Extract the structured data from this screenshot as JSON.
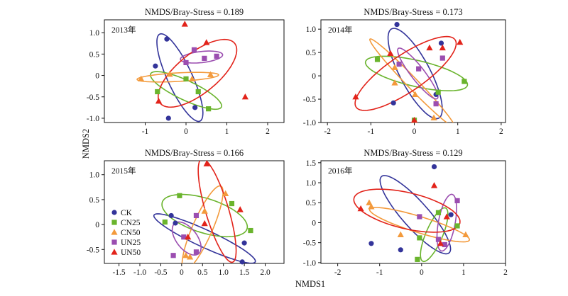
{
  "figure": {
    "xlabel": "NMDS1",
    "ylabel": "NMDS2"
  },
  "series_styles": [
    {
      "name": "CK",
      "marker": "circle",
      "color": "#33349a"
    },
    {
      "name": "CN25",
      "marker": "square",
      "color": "#6ab42d"
    },
    {
      "name": "CN50",
      "marker": "triangle",
      "color": "#f39a3c"
    },
    {
      "name": "UN25",
      "marker": "square",
      "color": "#9b4eb0"
    },
    {
      "name": "UN50",
      "marker": "triangle",
      "color": "#e2231a"
    }
  ],
  "legend": {
    "placement": "bottom-left",
    "panel": 2
  },
  "chart_data": [
    {
      "type": "scatter",
      "title": "NMDS/Bray-Stress = 0.189",
      "year_label": "2013年",
      "xlim": [
        -2,
        2.4
      ],
      "ylim": [
        -1.1,
        1.3
      ],
      "xticks": [
        -1,
        0,
        1,
        2
      ],
      "xtick_labels": [
        "-1",
        "0",
        "1",
        "2"
      ],
      "yticks": [
        -1.0,
        -0.5,
        0.0,
        0.5,
        1.0
      ],
      "ytick_labels": [
        "-1.0",
        "-0.5",
        "0",
        "0.5",
        "1.0"
      ],
      "series": [
        {
          "name": "CK",
          "points": [
            [
              -0.47,
              0.85
            ],
            [
              -0.75,
              0.22
            ],
            [
              0.22,
              -0.75
            ],
            [
              -0.43,
              -1.0
            ]
          ]
        },
        {
          "name": "CN25",
          "points": [
            [
              -0.7,
              -0.38
            ],
            [
              0.0,
              -0.08
            ],
            [
              0.55,
              -0.78
            ],
            [
              0.3,
              -0.38
            ]
          ]
        },
        {
          "name": "CN50",
          "points": [
            [
              -1.1,
              -0.08
            ],
            [
              -0.4,
              0.03
            ],
            [
              0.15,
              -0.08
            ],
            [
              0.6,
              0.02
            ]
          ]
        },
        {
          "name": "UN25",
          "points": [
            [
              0.0,
              0.3
            ],
            [
              0.2,
              0.6
            ],
            [
              0.45,
              0.4
            ],
            [
              0.75,
              0.45
            ]
          ]
        },
        {
          "name": "UN50",
          "points": [
            [
              -0.67,
              -0.6
            ],
            [
              -0.03,
              1.2
            ],
            [
              0.5,
              0.77
            ],
            [
              1.45,
              -0.5
            ]
          ]
        }
      ],
      "ellipses": [
        {
          "series": "CK",
          "center": [
            -0.15,
            -0.05
          ],
          "rx": 1.13,
          "ry": 0.3,
          "angle": -64
        },
        {
          "series": "CN25",
          "center": [
            0.0,
            -0.35
          ],
          "rx": 0.95,
          "ry": 0.23,
          "angle": -24
        },
        {
          "series": "CN50",
          "center": [
            -0.2,
            -0.04
          ],
          "rx": 1.0,
          "ry": 0.1,
          "angle": 3
        },
        {
          "series": "UN25",
          "center": [
            0.38,
            0.43
          ],
          "rx": 0.52,
          "ry": 0.13,
          "angle": 6
        },
        {
          "series": "UN50",
          "center": [
            0.28,
            0.05
          ],
          "rx": 1.15,
          "ry": 0.48,
          "angle": 37
        }
      ]
    },
    {
      "type": "scatter",
      "title": "NMDS/Bray-Stress = 0.173",
      "year_label": "2014年",
      "xlim": [
        -2.15,
        2.1
      ],
      "ylim": [
        -1.0,
        1.2
      ],
      "xticks": [
        -2,
        -1,
        0,
        1,
        2
      ],
      "xtick_labels": [
        "-2",
        "-1",
        "0",
        "1",
        "2"
      ],
      "yticks": [
        -1.0,
        -0.5,
        0.0,
        0.5,
        1.0
      ],
      "ytick_labels": [
        "-1.0",
        "-0.5",
        "0",
        "0.5",
        "1.0"
      ],
      "series": [
        {
          "name": "CK",
          "points": [
            [
              -0.4,
              1.1
            ],
            [
              0.62,
              0.7
            ],
            [
              -0.48,
              -0.58
            ],
            [
              0.5,
              -0.4
            ]
          ]
        },
        {
          "name": "CN25",
          "points": [
            [
              -0.85,
              0.35
            ],
            [
              1.15,
              -0.12
            ],
            [
              0.55,
              -0.35
            ],
            [
              0.0,
              -0.95
            ]
          ]
        },
        {
          "name": "CN50",
          "points": [
            [
              -0.45,
              0.18
            ],
            [
              -0.45,
              -0.15
            ],
            [
              0.02,
              -0.4
            ],
            [
              0.45,
              -0.9
            ]
          ]
        },
        {
          "name": "UN25",
          "points": [
            [
              -0.35,
              0.25
            ],
            [
              0.1,
              0.15
            ],
            [
              0.65,
              0.38
            ],
            [
              0.5,
              -0.6
            ]
          ]
        },
        {
          "name": "UN50",
          "points": [
            [
              -1.35,
              -0.45
            ],
            [
              -0.55,
              0.48
            ],
            [
              0.35,
              0.6
            ],
            [
              0.65,
              0.6
            ],
            [
              1.05,
              0.72
            ],
            [
              0.0,
              -0.95
            ]
          ]
        }
      ],
      "ellipses": [
        {
          "series": "CK",
          "center": [
            0.02,
            0.05
          ],
          "rx": 1.1,
          "ry": 0.34,
          "angle": -60
        },
        {
          "series": "CN25",
          "center": [
            0.05,
            0.05
          ],
          "rx": 1.2,
          "ry": 0.28,
          "angle": -12
        },
        {
          "series": "CN50",
          "center": [
            -0.05,
            -0.15
          ],
          "rx": 1.35,
          "ry": 0.12,
          "angle": -44
        },
        {
          "series": "UN25",
          "center": [
            0.08,
            0.05
          ],
          "rx": 0.7,
          "ry": 0.15,
          "angle": -50
        },
        {
          "series": "UN50",
          "center": [
            -0.2,
            0.05
          ],
          "rx": 1.35,
          "ry": 0.4,
          "angle": 32
        }
      ]
    },
    {
      "type": "scatter",
      "title": "NMDS/Bray-Stress = 0.166",
      "year_label": "2015年",
      "xlim": [
        -1.85,
        2.45
      ],
      "ylim": [
        -0.78,
        1.28
      ],
      "xticks": [
        -1.5,
        -1.0,
        -0.5,
        0.0,
        0.5,
        1.0,
        1.5,
        2.0
      ],
      "xtick_labels": [
        "-1.5",
        "-1.0",
        "-0.5",
        "0",
        "0.5",
        "1.0",
        "1.5",
        "2.0"
      ],
      "yticks": [
        -0.5,
        0.0,
        0.5,
        1.0
      ],
      "ytick_labels": [
        "-0.5",
        "0",
        "0.5",
        "1.0"
      ],
      "series": [
        {
          "name": "CK",
          "points": [
            [
              -0.25,
              0.18
            ],
            [
              -0.15,
              0.03
            ],
            [
              1.45,
              -0.75
            ],
            [
              1.5,
              -0.37
            ]
          ]
        },
        {
          "name": "CN25",
          "points": [
            [
              -0.05,
              0.58
            ],
            [
              -0.4,
              0.05
            ],
            [
              1.2,
              0.42
            ],
            [
              1.65,
              -0.12
            ]
          ]
        },
        {
          "name": "CN50",
          "points": [
            [
              0.55,
              0.27
            ],
            [
              1.05,
              0.62
            ],
            [
              0.1,
              -0.62
            ],
            [
              0.2,
              -0.65
            ]
          ]
        },
        {
          "name": "UN25",
          "points": [
            [
              -0.2,
              -0.62
            ],
            [
              0.35,
              0.18
            ],
            [
              0.05,
              -0.25
            ],
            [
              0.35,
              -0.55
            ]
          ]
        },
        {
          "name": "UN50",
          "points": [
            [
              0.6,
              1.22
            ],
            [
              0.55,
              0.02
            ],
            [
              1.4,
              0.3
            ],
            [
              0.15,
              -0.25
            ]
          ]
        }
      ],
      "ellipses": [
        {
          "series": "CK",
          "center": [
            0.55,
            -0.28
          ],
          "rx": 1.3,
          "ry": 0.18,
          "angle": -21
        },
        {
          "series": "CN25",
          "center": [
            0.55,
            0.18
          ],
          "rx": 1.05,
          "ry": 0.35,
          "angle": -14
        },
        {
          "series": "CN50",
          "center": [
            0.5,
            -0.07
          ],
          "rx": 0.95,
          "ry": 0.23,
          "angle": 62
        },
        {
          "series": "UN25",
          "center": [
            0.12,
            -0.28
          ],
          "rx": 0.42,
          "ry": 0.23,
          "angle": -43
        },
        {
          "series": "UN50",
          "center": [
            0.85,
            0.28
          ],
          "rx": 1.1,
          "ry": 0.27,
          "angle": -70
        }
      ]
    },
    {
      "type": "scatter",
      "title": "NMDS/Bray-Stress = 0.129",
      "year_label": "2016年",
      "xlim": [
        -2.4,
        2.0
      ],
      "ylim": [
        -1.02,
        1.55
      ],
      "xticks": [
        -2,
        -1,
        0,
        1,
        2
      ],
      "xtick_labels": [
        "-2",
        "-1",
        "0",
        "1",
        "2"
      ],
      "yticks": [
        -1.0,
        -0.5,
        0.0,
        0.5,
        1.0,
        1.5
      ],
      "ytick_labels": [
        "-1.0",
        "-0.5",
        "0",
        "0.5",
        "1.0",
        "1.5"
      ],
      "series": [
        {
          "name": "CK",
          "points": [
            [
              0.3,
              1.4
            ],
            [
              0.7,
              0.2
            ],
            [
              -1.2,
              -0.52
            ],
            [
              -0.5,
              -0.68
            ]
          ]
        },
        {
          "name": "CN25",
          "points": [
            [
              0.4,
              0.25
            ],
            [
              -0.05,
              -0.38
            ],
            [
              -0.1,
              -0.92
            ],
            [
              0.85,
              -0.08
            ]
          ]
        },
        {
          "name": "CN50",
          "points": [
            [
              -1.25,
              0.5
            ],
            [
              -0.5,
              -0.3
            ],
            [
              -1.2,
              0.4
            ],
            [
              1.05,
              -0.3
            ]
          ]
        },
        {
          "name": "UN25",
          "points": [
            [
              -0.05,
              0.15
            ],
            [
              0.85,
              0.55
            ],
            [
              0.4,
              -0.42
            ],
            [
              0.55,
              -0.55
            ]
          ]
        },
        {
          "name": "UN50",
          "points": [
            [
              -1.45,
              0.35
            ],
            [
              0.3,
              0.93
            ],
            [
              0.6,
              0.15
            ],
            [
              0.45,
              -0.52
            ]
          ]
        }
      ],
      "ellipses": [
        {
          "series": "CK",
          "center": [
            -0.15,
            0.2
          ],
          "rx": 1.25,
          "ry": 0.32,
          "angle": -50
        },
        {
          "series": "CN25",
          "center": [
            0.3,
            -0.3
          ],
          "rx": 0.72,
          "ry": 0.2,
          "angle": 68
        },
        {
          "series": "CN50",
          "center": [
            -0.05,
            -0.05
          ],
          "rx": 1.25,
          "ry": 0.2,
          "angle": -18
        },
        {
          "series": "UN25",
          "center": [
            0.6,
            0.0
          ],
          "rx": 0.72,
          "ry": 0.2,
          "angle": 80
        },
        {
          "series": "UN50",
          "center": [
            -0.35,
            0.3
          ],
          "rx": 1.3,
          "ry": 0.45,
          "angle": -14
        }
      ]
    }
  ]
}
